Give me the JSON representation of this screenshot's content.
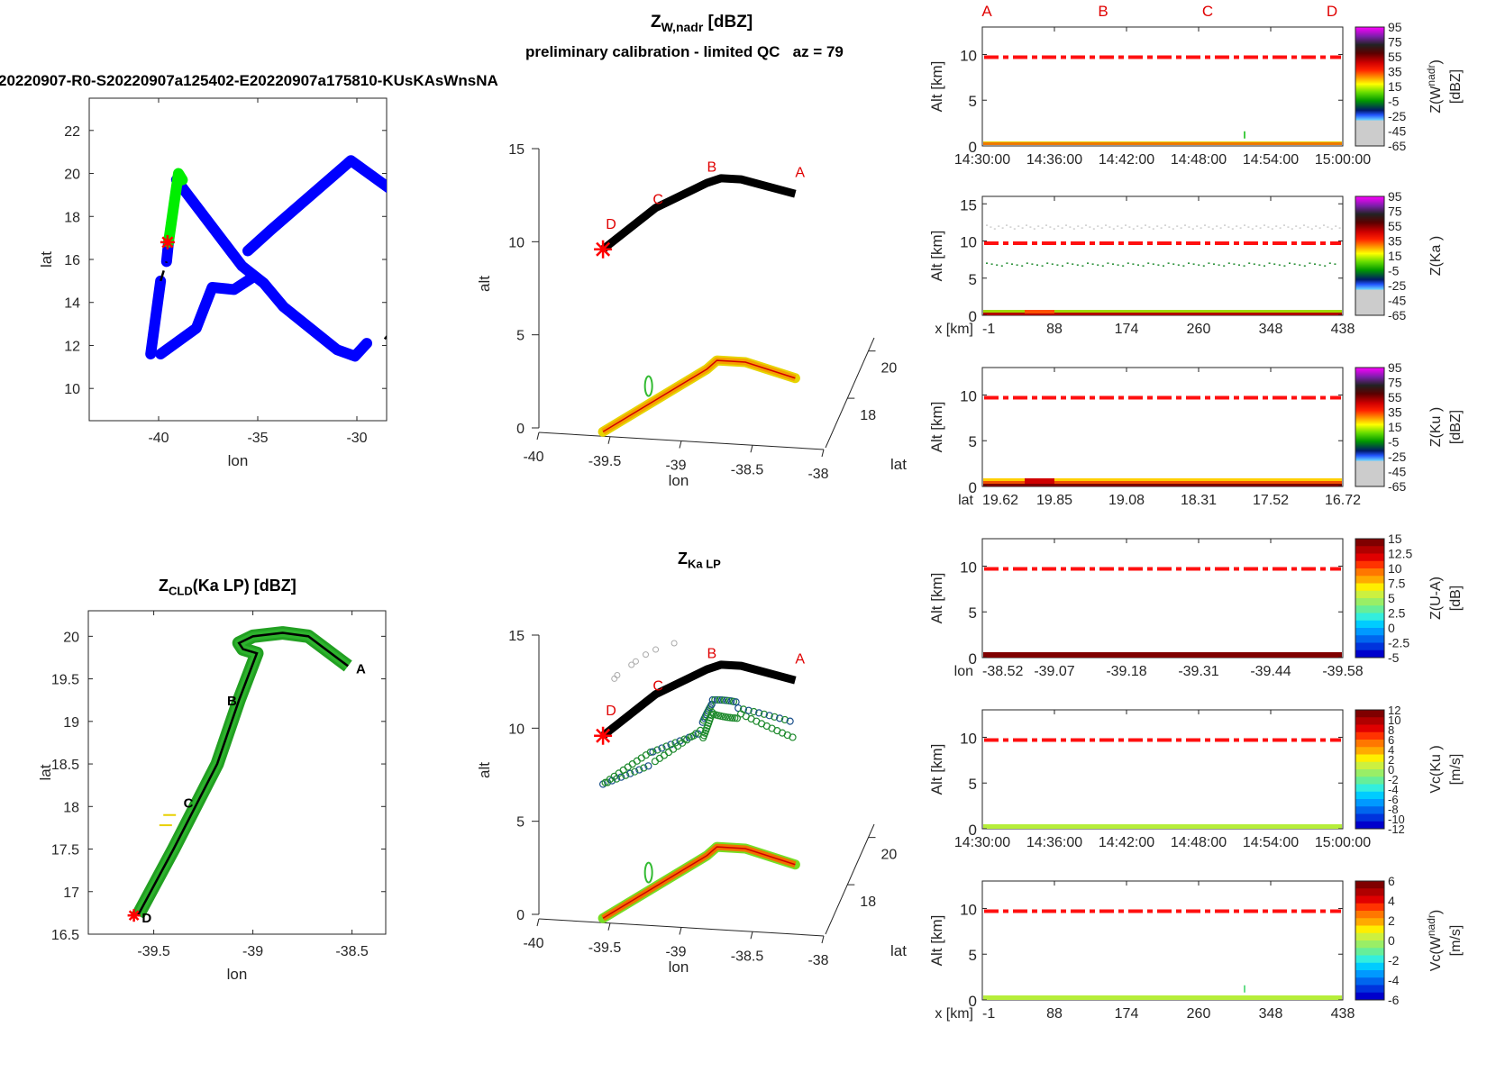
{
  "header": {
    "main_title_base": "Z",
    "main_title_sub": "W,nadr",
    "main_title_unit": " [dBZ]",
    "subtitle": "preliminary calibration - limited QC   az = 79",
    "file_title": "20220907-R0-S20220907a125402-E20220907a175810-KUsKAsWnsNA"
  },
  "chart_data": [
    {
      "id": "flight-track-map",
      "type": "line",
      "title": "",
      "xlabel": "lon",
      "ylabel": "lat",
      "xlim": [
        -43.5,
        -28.5
      ],
      "ylim": [
        8.5,
        23.5
      ],
      "xticks": [
        -40,
        -35,
        -30
      ],
      "yticks": [
        10,
        12,
        14,
        16,
        18,
        20,
        22
      ],
      "series": [
        {
          "name": "track-blue",
          "color": "#0000ff",
          "points": [
            [
              -39.1,
              19.7
            ],
            [
              -35.8,
              15.7
            ],
            [
              -34.7,
              14.9
            ],
            [
              -33.7,
              13.8
            ],
            [
              -31.0,
              11.8
            ],
            [
              -30.1,
              11.5
            ],
            [
              -29.5,
              12.1
            ]
          ]
        },
        {
          "name": "track-blue-2",
          "color": "#0000ff",
          "points": [
            [
              -39.9,
              11.6
            ],
            [
              -38.1,
              12.8
            ],
            [
              -37.3,
              14.7
            ],
            [
              -36.2,
              14.6
            ],
            [
              -35.2,
              15.2
            ]
          ]
        },
        {
          "name": "track-blue-3",
          "color": "#0000ff",
          "points": [
            [
              -35.5,
              16.4
            ],
            [
              -34.3,
              17.4
            ],
            [
              -30.3,
              20.6
            ],
            [
              -28.2,
              19.2
            ]
          ]
        },
        {
          "name": "track-blue-4",
          "color": "#0000ff",
          "points": [
            [
              -40.4,
              11.6
            ],
            [
              -39.9,
              15.0
            ]
          ]
        },
        {
          "name": "track-blue-5",
          "color": "#0000ff",
          "points": [
            [
              -39.6,
              15.9
            ],
            [
              -39.5,
              16.8
            ]
          ]
        },
        {
          "name": "track-green",
          "color": "#00ee00",
          "points": [
            [
              -39.5,
              16.8
            ],
            [
              -39.0,
              20.0
            ],
            [
              -38.8,
              19.7
            ]
          ]
        },
        {
          "name": "gap-dashed-1",
          "color": "#000000",
          "dashed": true,
          "points": [
            [
              -28.2,
              19.1
            ],
            [
              -26.5,
              17.5
            ]
          ]
        },
        {
          "name": "gap-dashed-2",
          "color": "#000000",
          "dashed": true,
          "points": [
            [
              -28.6,
              12.3
            ],
            [
              -26.5,
              14.5
            ]
          ]
        },
        {
          "name": "gap-dashed-3",
          "color": "#000000",
          "dashed": true,
          "points": [
            [
              -39.9,
              15.0
            ],
            [
              -39.6,
              15.9
            ]
          ]
        }
      ],
      "marker": {
        "lon": -39.55,
        "lat": 16.8,
        "symbol": "asterisk",
        "color": "#ff0000"
      }
    },
    {
      "id": "zw-3d-view",
      "type": "scatter",
      "title": "",
      "xlabel": "lon",
      "ylabel": "lat",
      "zlabel": "alt",
      "xlim": [
        -40,
        -38
      ],
      "zlim": [
        0,
        15
      ],
      "xticks": [
        -40,
        -39.5,
        -39,
        -38.5,
        -38
      ],
      "zticks": [
        0,
        5,
        10,
        15
      ],
      "lat_ticks": [
        18,
        20
      ],
      "flight_track_alt_km": [
        9.8,
        11.5,
        13.4,
        14.0,
        14.0,
        13.3
      ],
      "track_labels": [
        "D",
        "C",
        "B",
        "A"
      ],
      "surface_echo_alt_km": [
        0.1,
        3.8,
        4.3,
        4.3,
        3.6
      ]
    },
    {
      "id": "zcld-ka-lp-map",
      "type": "line",
      "title_base": "Z",
      "title_sub": "CLD",
      "title_rest": "(Ka LP) [dBZ]",
      "xlabel": "lon",
      "ylabel": "lat",
      "xlim": [
        -39.83,
        -38.33
      ],
      "ylim": [
        16.5,
        20.3
      ],
      "xticks": [
        -39.5,
        -39,
        -38.5
      ],
      "yticks": [
        16.5,
        17,
        17.5,
        18,
        18.5,
        19,
        19.5,
        20
      ],
      "track": [
        [
          -39.58,
          16.72
        ],
        [
          -39.4,
          17.5
        ],
        [
          -39.18,
          18.5
        ],
        [
          -39.07,
          19.25
        ],
        [
          -38.98,
          19.8
        ],
        [
          -39.05,
          19.85
        ],
        [
          -39.07,
          19.92
        ],
        [
          -39.0,
          20.0
        ],
        [
          -38.85,
          20.04
        ],
        [
          -38.72,
          20.0
        ],
        [
          -38.52,
          19.65
        ]
      ],
      "point_labels": [
        {
          "label": "A",
          "lon": -38.48,
          "lat": 19.63
        },
        {
          "label": "B",
          "lon": -39.13,
          "lat": 19.25
        },
        {
          "label": "C",
          "lon": -39.35,
          "lat": 18.05
        },
        {
          "label": "D",
          "lon": -39.56,
          "lat": 16.7
        }
      ]
    },
    {
      "id": "zka-lp-3d-view",
      "type": "scatter",
      "title_base": "Z",
      "title_sub": "Ka LP",
      "xlabel": "lon",
      "ylabel": "lat",
      "zlabel": "alt",
      "xlim": [
        -40,
        -38
      ],
      "zlim": [
        0,
        15
      ],
      "xticks": [
        -40,
        -39.5,
        -39,
        -38.5,
        -38
      ],
      "zticks": [
        0,
        5,
        10,
        15
      ],
      "lat_ticks": [
        18,
        20
      ],
      "cloud_layer_alt_km": [
        7.2,
        9.0,
        11.5,
        11.7,
        10.7
      ]
    }
  ],
  "curtains": [
    {
      "id": "curtain-zw-nadr",
      "ylabel": "Alt [km]",
      "yticks": [
        0,
        5,
        10
      ],
      "ylim": [
        0,
        13
      ],
      "xlabel_prefix": "",
      "xticks": [
        "14:30:00",
        "14:36:00",
        "14:42:00",
        "14:48:00",
        "14:54:00",
        "15:00:00"
      ],
      "top_labels": [
        "A",
        "B",
        "C",
        "D"
      ],
      "cb_label": "Z(W",
      "cb_label_sub": "nadr",
      "cb_label_tail": ")",
      "cb_unit": "[dBZ]",
      "cb_ticks": [
        "95",
        "75",
        "55",
        "35",
        "15",
        "-5",
        "-25",
        "-45",
        "-65"
      ],
      "cmap": "z",
      "flight_alt_km": 9.7,
      "surface": "z-thin"
    },
    {
      "id": "curtain-zka",
      "ylabel": "Alt [km]",
      "yticks": [
        0,
        5,
        10,
        15
      ],
      "ylim": [
        0,
        16
      ],
      "xlabel_prefix": "x [km]",
      "xticks": [
        "-1",
        "88",
        "174",
        "260",
        "348",
        "438"
      ],
      "cb_label": "Z(Ka )",
      "cb_unit": "",
      "cb_ticks": [
        "95",
        "75",
        "55",
        "35",
        "15",
        "-5",
        "-25",
        "-45",
        "-65"
      ],
      "cmap": "z",
      "flight_alt_km": 9.7,
      "surface": "z-ka"
    },
    {
      "id": "curtain-zku",
      "ylabel": "Alt [km]",
      "yticks": [
        0,
        5,
        10
      ],
      "ylim": [
        0,
        13
      ],
      "xlabel_prefix": "lat",
      "xticks": [
        "19.62",
        "19.85",
        "19.08",
        "18.31",
        "17.52",
        "16.72"
      ],
      "cb_label": "Z(Ku )",
      "cb_unit": "[dBZ]",
      "cb_ticks": [
        "95",
        "75",
        "55",
        "35",
        "15",
        "-5",
        "-25",
        "-45",
        "-65"
      ],
      "cmap": "z",
      "flight_alt_km": 9.7,
      "surface": "z-ku"
    },
    {
      "id": "curtain-dfr",
      "ylabel": "Alt [km]",
      "yticks": [
        0,
        5,
        10
      ],
      "ylim": [
        0,
        13
      ],
      "xlabel_prefix": "lon",
      "xticks": [
        "-38.52",
        "-39.07",
        "-39.18",
        "-39.31",
        "-39.44",
        "-39.58"
      ],
      "cb_label": "Z(U-A)",
      "cb_unit": "[dB]",
      "cb_ticks": [
        "15",
        "12.5",
        "10",
        "7.5",
        "5",
        "2.5",
        "0",
        "-2.5",
        "-5"
      ],
      "cmap": "jet",
      "flight_alt_km": 9.7,
      "surface": "dfr"
    },
    {
      "id": "curtain-vc-ku",
      "ylabel": "Alt [km]",
      "yticks": [
        0,
        5,
        10
      ],
      "ylim": [
        0,
        13
      ],
      "xlabel_prefix": "",
      "xticks": [
        "14:30:00",
        "14:36:00",
        "14:42:00",
        "14:48:00",
        "14:54:00",
        "15:00:00"
      ],
      "cb_label": "Vc(Ku )",
      "cb_unit": "[m/s]",
      "cb_ticks": [
        "12",
        "10",
        "8",
        "6",
        "4",
        "2",
        "0",
        "-2",
        "-4",
        "-6",
        "-8",
        "-10",
        "-12"
      ],
      "cmap": "jet",
      "flight_alt_km": 9.7,
      "surface": "vel"
    },
    {
      "id": "curtain-vc-wnadr",
      "ylabel": "Alt [km]",
      "yticks": [
        0,
        5,
        10
      ],
      "ylim": [
        0,
        13
      ],
      "xlabel_prefix": "x [km]",
      "xticks": [
        "-1",
        "88",
        "174",
        "260",
        "348",
        "438"
      ],
      "cb_label": "Vc(W",
      "cb_label_sub": "nadr",
      "cb_label_tail": ")",
      "cb_unit": "[m/s]",
      "cb_ticks": [
        "6",
        "4",
        "2",
        "0",
        "-2",
        "-4",
        "-6"
      ],
      "cmap": "jet",
      "flight_alt_km": 9.7,
      "surface": "vel"
    }
  ],
  "colors": {
    "track_label": "#e00000",
    "flight_line": "#ff0000",
    "track_blue": "#0000ff",
    "track_green": "#00ee00"
  }
}
